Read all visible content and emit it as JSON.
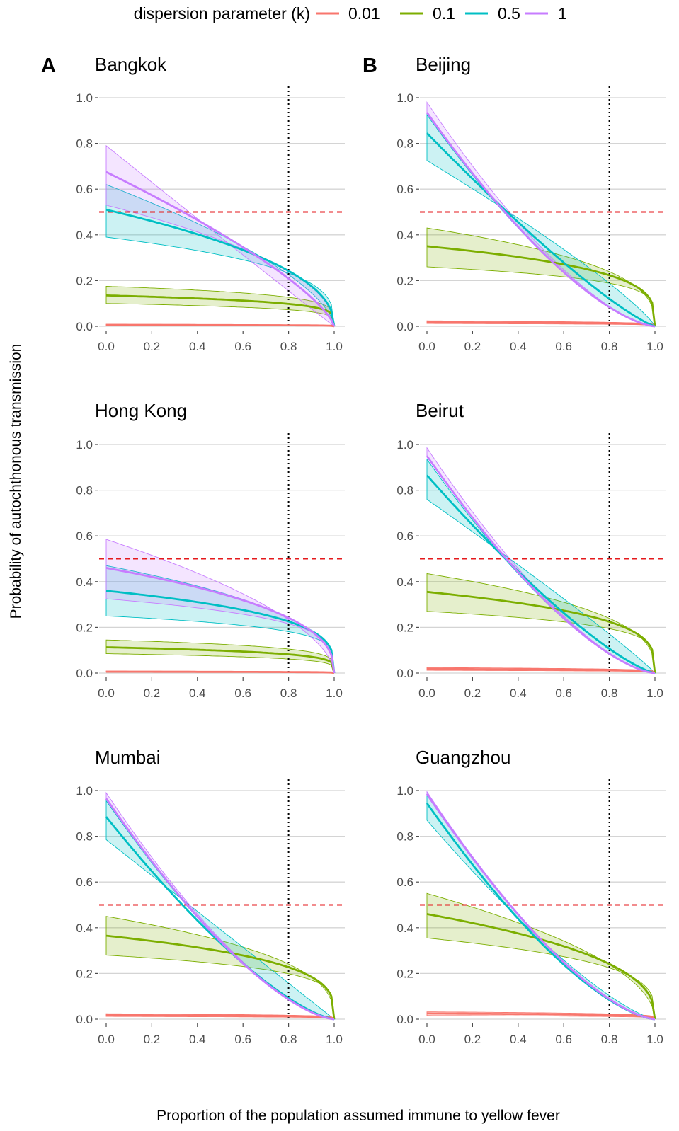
{
  "legend": {
    "title": "dispersion parameter (k)",
    "items": [
      {
        "label": "0.01",
        "color": "#F8766D"
      },
      {
        "label": "0.1",
        "color": "#7CAE00"
      },
      {
        "label": "0.5",
        "color": "#00BFC4"
      },
      {
        "label": "1",
        "color": "#C77CFF"
      }
    ]
  },
  "xlabel": "Proportion of the population assumed immune to yellow fever",
  "ylabel": "Probability of autochthonous transmission",
  "reference_lines": {
    "horizontal_y": 0.5,
    "horizontal_color": "#E41A1C",
    "vertical_x": 0.8,
    "vertical_color": "#000000"
  },
  "chart_data": [
    {
      "type": "line",
      "letter": "A",
      "title": "Bangkok",
      "xlim": [
        0,
        1
      ],
      "ylim": [
        0,
        1
      ],
      "xticks": [
        "0.0",
        "0.2",
        "0.4",
        "0.6",
        "0.8",
        "1.0"
      ],
      "yticks": [
        "0.0",
        "0.2",
        "0.4",
        "0.6",
        "0.8",
        "1.0"
      ],
      "series": [
        {
          "name": "0.01",
          "y0": 0.006,
          "lo0": 0.004,
          "hi0": 0.009
        },
        {
          "name": "0.1",
          "y0": 0.135,
          "lo0": 0.1,
          "hi0": 0.175
        },
        {
          "name": "0.5",
          "y0": 0.51,
          "lo0": 0.39,
          "hi0": 0.62
        },
        {
          "name": "1",
          "y0": 0.675,
          "lo0": 0.53,
          "hi0": 0.79
        }
      ]
    },
    {
      "type": "line",
      "letter": "B",
      "title": "Beijing",
      "xlim": [
        0,
        1
      ],
      "ylim": [
        0,
        1
      ],
      "xticks": [
        "0.0",
        "0.2",
        "0.4",
        "0.6",
        "0.8",
        "1.0"
      ],
      "yticks": [
        "0.0",
        "0.2",
        "0.4",
        "0.6",
        "0.8",
        "1.0"
      ],
      "series": [
        {
          "name": "0.01",
          "y0": 0.018,
          "lo0": 0.012,
          "hi0": 0.024
        },
        {
          "name": "0.1",
          "y0": 0.35,
          "lo0": 0.26,
          "hi0": 0.43
        },
        {
          "name": "0.5",
          "y0": 0.845,
          "lo0": 0.725,
          "hi0": 0.925
        },
        {
          "name": "1",
          "y0": 0.935,
          "lo0": 0.93,
          "hi0": 0.98
        }
      ]
    },
    {
      "type": "line",
      "letter": "",
      "title": "Hong Kong",
      "xlim": [
        0,
        1
      ],
      "ylim": [
        0,
        1
      ],
      "xticks": [
        "0.0",
        "0.2",
        "0.4",
        "0.6",
        "0.8",
        "1.0"
      ],
      "yticks": [
        "0.0",
        "0.2",
        "0.4",
        "0.6",
        "0.8",
        "1.0"
      ],
      "series": [
        {
          "name": "0.01",
          "y0": 0.006,
          "lo0": 0.004,
          "hi0": 0.009
        },
        {
          "name": "0.1",
          "y0": 0.113,
          "lo0": 0.085,
          "hi0": 0.145
        },
        {
          "name": "0.5",
          "y0": 0.36,
          "lo0": 0.25,
          "hi0": 0.47
        },
        {
          "name": "1",
          "y0": 0.46,
          "lo0": 0.325,
          "hi0": 0.585
        }
      ]
    },
    {
      "type": "line",
      "letter": "",
      "title": "Beirut",
      "xlim": [
        0,
        1
      ],
      "ylim": [
        0,
        1
      ],
      "xticks": [
        "0.0",
        "0.2",
        "0.4",
        "0.6",
        "0.8",
        "1.0"
      ],
      "yticks": [
        "0.0",
        "0.2",
        "0.4",
        "0.6",
        "0.8",
        "1.0"
      ],
      "series": [
        {
          "name": "0.01",
          "y0": 0.018,
          "lo0": 0.012,
          "hi0": 0.024
        },
        {
          "name": "0.1",
          "y0": 0.355,
          "lo0": 0.27,
          "hi0": 0.435
        },
        {
          "name": "0.5",
          "y0": 0.865,
          "lo0": 0.76,
          "hi0": 0.935
        },
        {
          "name": "1",
          "y0": 0.95,
          "lo0": 0.945,
          "hi0": 0.985
        }
      ]
    },
    {
      "type": "line",
      "letter": "",
      "title": "Mumbai",
      "xlim": [
        0,
        1
      ],
      "ylim": [
        0,
        1
      ],
      "xticks": [
        "0.0",
        "0.2",
        "0.4",
        "0.6",
        "0.8",
        "1.0"
      ],
      "yticks": [
        "0.0",
        "0.2",
        "0.4",
        "0.6",
        "0.8",
        "1.0"
      ],
      "series": [
        {
          "name": "0.01",
          "y0": 0.018,
          "lo0": 0.012,
          "hi0": 0.024
        },
        {
          "name": "0.1",
          "y0": 0.365,
          "lo0": 0.28,
          "hi0": 0.45
        },
        {
          "name": "0.5",
          "y0": 0.885,
          "lo0": 0.785,
          "hi0": 0.955
        },
        {
          "name": "1",
          "y0": 0.965,
          "lo0": 0.96,
          "hi0": 0.99
        }
      ]
    },
    {
      "type": "line",
      "letter": "",
      "title": "Guangzhou",
      "xlim": [
        0,
        1
      ],
      "ylim": [
        0,
        1
      ],
      "xticks": [
        "0.0",
        "0.2",
        "0.4",
        "0.6",
        "0.8",
        "1.0"
      ],
      "yticks": [
        "0.0",
        "0.2",
        "0.4",
        "0.6",
        "0.8",
        "1.0"
      ],
      "series": [
        {
          "name": "0.01",
          "y0": 0.025,
          "lo0": 0.016,
          "hi0": 0.032
        },
        {
          "name": "0.1",
          "y0": 0.46,
          "lo0": 0.355,
          "hi0": 0.55
        },
        {
          "name": "0.5",
          "y0": 0.945,
          "lo0": 0.87,
          "hi0": 0.98
        },
        {
          "name": "1",
          "y0": 0.985,
          "lo0": 0.98,
          "hi0": 0.995
        }
      ]
    }
  ]
}
